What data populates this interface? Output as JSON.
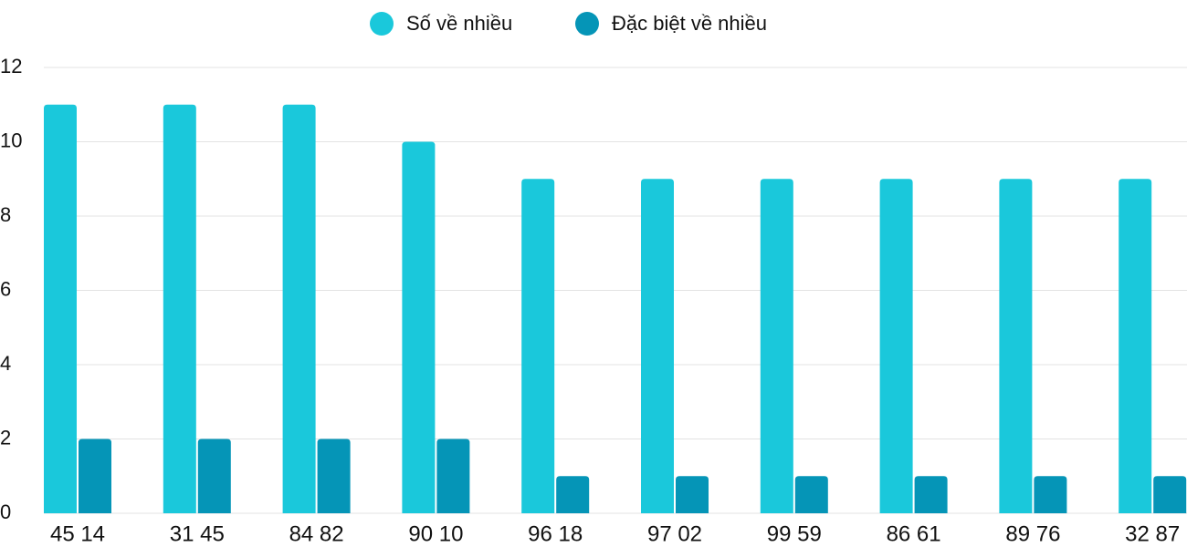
{
  "chart_data": {
    "type": "bar",
    "categories": [
      "45 14",
      "31 45",
      "84 82",
      "90 10",
      "96 18",
      "97 02",
      "99 59",
      "86 61",
      "89 76",
      "32 87"
    ],
    "series": [
      {
        "name": "Số về nhiều",
        "color": "#1ac8db",
        "values": [
          11,
          11,
          11,
          10,
          9,
          9,
          9,
          9,
          9,
          9
        ]
      },
      {
        "name": "Đặc biệt về nhiều",
        "color": "#0595b7",
        "values": [
          2,
          2,
          2,
          2,
          1,
          1,
          1,
          1,
          1,
          1
        ]
      }
    ],
    "ylim": [
      0,
      12
    ],
    "yticks": [
      0,
      2,
      4,
      6,
      8,
      10,
      12
    ],
    "grid": true,
    "legend": "top"
  }
}
